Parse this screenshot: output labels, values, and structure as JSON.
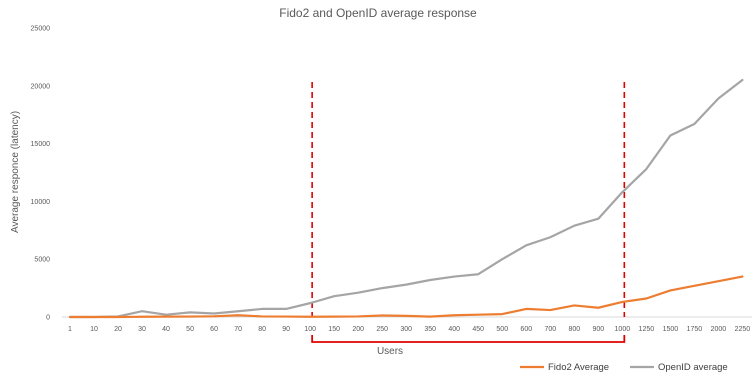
{
  "chart_data": {
    "type": "line",
    "title": "Fido2 and OpenID average response",
    "xlabel": "Users",
    "ylabel": "Average responce (latency)",
    "categories": [
      "1",
      "10",
      "20",
      "30",
      "40",
      "50",
      "60",
      "70",
      "80",
      "90",
      "100",
      "150",
      "200",
      "250",
      "300",
      "350",
      "400",
      "450",
      "500",
      "600",
      "700",
      "800",
      "900",
      "1000",
      "1250",
      "1500",
      "1750",
      "2000",
      "2250"
    ],
    "ylim": [
      0,
      25000
    ],
    "yticks": [
      "0",
      "5000",
      "10000",
      "15000",
      "20000",
      "25000"
    ],
    "grid": false,
    "legend_position": "bottom-right",
    "series": [
      {
        "name": "Fido2 Average",
        "color": "#ED7D31",
        "values": [
          0,
          0,
          0,
          20,
          30,
          40,
          60,
          150,
          50,
          40,
          20,
          30,
          50,
          130,
          100,
          30,
          150,
          200,
          250,
          700,
          600,
          1000,
          800,
          1300,
          1600,
          2300,
          2700,
          3100,
          3500
        ]
      },
      {
        "name": "OpenID average",
        "color": "#A5A5A5",
        "values": [
          0,
          0,
          50,
          500,
          200,
          400,
          300,
          500,
          700,
          700,
          1200,
          1800,
          2100,
          2500,
          2800,
          3200,
          3500,
          3700,
          5000,
          6200,
          6900,
          7900,
          8500,
          10800,
          12800,
          15700,
          16700,
          18900,
          20500
        ]
      }
    ],
    "annotations": {
      "dashed_lines_at": [
        "100",
        "1000"
      ],
      "dashed_color": "#E00000",
      "bracket_range": [
        "100",
        "1000"
      ],
      "bracket_color": "#E00000"
    }
  }
}
